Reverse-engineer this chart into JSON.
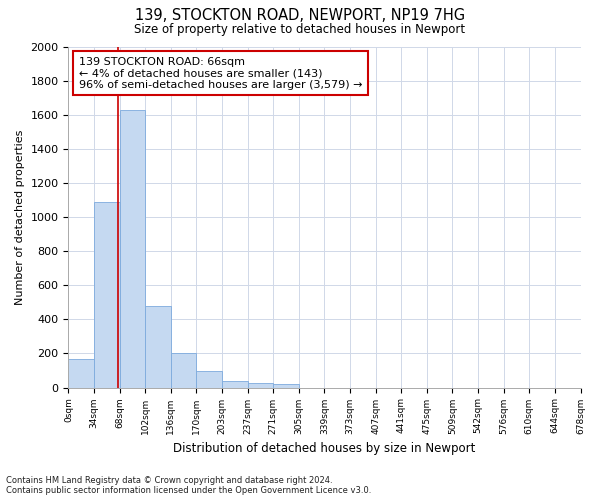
{
  "title_line1": "139, STOCKTON ROAD, NEWPORT, NP19 7HG",
  "title_line2": "Size of property relative to detached houses in Newport",
  "xlabel": "Distribution of detached houses by size in Newport",
  "ylabel": "Number of detached properties",
  "footer_line1": "Contains HM Land Registry data © Crown copyright and database right 2024.",
  "footer_line2": "Contains public sector information licensed under the Open Government Licence v3.0.",
  "annotation_line1": "139 STOCKTON ROAD: 66sqm",
  "annotation_line2": "← 4% of detached houses are smaller (143)",
  "annotation_line3": "96% of semi-detached houses are larger (3,579) →",
  "bar_values": [
    165,
    1090,
    1630,
    480,
    200,
    100,
    40,
    25,
    20,
    0,
    0,
    0,
    0,
    0,
    0,
    0,
    0,
    0,
    0,
    0
  ],
  "bar_color": "#c5d9f1",
  "bar_edge_color": "#7daadd",
  "marker_color": "#cc0000",
  "ylim": [
    0,
    2000
  ],
  "yticks": [
    0,
    200,
    400,
    600,
    800,
    1000,
    1200,
    1400,
    1600,
    1800,
    2000
  ],
  "x_labels": [
    "0sqm",
    "34sqm",
    "68sqm",
    "102sqm",
    "136sqm",
    "170sqm",
    "203sqm",
    "237sqm",
    "271sqm",
    "305sqm",
    "339sqm",
    "373sqm",
    "407sqm",
    "441sqm",
    "475sqm",
    "509sqm",
    "542sqm",
    "576sqm",
    "610sqm",
    "644sqm",
    "678sqm"
  ],
  "background_color": "#ffffff",
  "grid_color": "#d0d8e8",
  "figsize": [
    6.0,
    5.0
  ],
  "dpi": 100
}
